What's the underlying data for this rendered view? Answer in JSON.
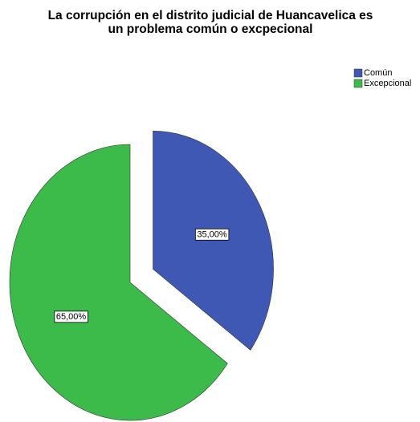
{
  "chart_data": {
    "type": "pie",
    "title": [
      "La corrupción en el distrito judicial de Huancavelica es",
      "un problema común o excpecional"
    ],
    "categories": [
      "Común",
      "Excepcional"
    ],
    "values": [
      35,
      65
    ],
    "value_labels": [
      "35,00%",
      "65,00%"
    ],
    "colors": [
      "#3f58b4",
      "#3cbb4b"
    ],
    "legend": "top-right"
  }
}
